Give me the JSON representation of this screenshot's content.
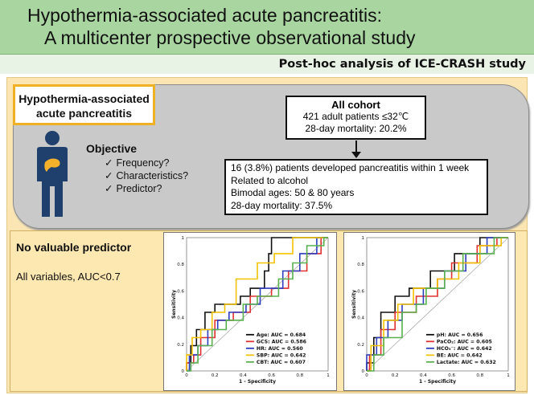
{
  "title": {
    "line1": "Hypothermia-associated acute pancreatitis:",
    "line2": "A multicenter prospective observational study"
  },
  "subtitle": "Post-hoc analysis of ICE-CRASH study",
  "topic": {
    "line1": "Hypothermia-associated",
    "line2": "acute pancreatitis"
  },
  "objective": {
    "heading": "Objective",
    "items": [
      "Frequency?",
      "Characteristics?",
      "Predictor?"
    ]
  },
  "all_cohort": {
    "title": "All cohort",
    "line1": "421 adult patients ≤32℃",
    "line2": "28-day mortality: 20.2%"
  },
  "findings": [
    "16 (3.8%) patients developed pancreatitis within 1 week",
    "Related to alcohol",
    "Bimodal ages: 50 & 80 years",
    "28-day mortality: 37.5%"
  ],
  "conclusion": {
    "heading": "No valuable predictor",
    "note": "All variables, AUC<0.7"
  },
  "chart_data": [
    {
      "type": "line",
      "xlabel": "1 - Specificity",
      "ylabel": "Sensitivity",
      "xlim": [
        0,
        1
      ],
      "ylim": [
        0,
        1
      ],
      "xticks": [
        "0",
        "0.2",
        "0.4",
        "0.6",
        "0.8",
        "1"
      ],
      "yticks": [
        "0",
        "0.2",
        "0.4",
        "0.6",
        "0.8",
        "1"
      ],
      "legend_position": "bottom-right",
      "series": [
        {
          "name": "Age: AUC = 0.684",
          "color": "#111111",
          "points": [
            [
              0,
              0
            ],
            [
              0,
              0.06
            ],
            [
              0.03,
              0.06
            ],
            [
              0.03,
              0.19
            ],
            [
              0.07,
              0.19
            ],
            [
              0.07,
              0.31
            ],
            [
              0.13,
              0.31
            ],
            [
              0.13,
              0.44
            ],
            [
              0.2,
              0.44
            ],
            [
              0.2,
              0.5
            ],
            [
              0.38,
              0.5
            ],
            [
              0.38,
              0.56
            ],
            [
              0.45,
              0.56
            ],
            [
              0.45,
              0.62
            ],
            [
              0.55,
              0.62
            ],
            [
              0.55,
              0.75
            ],
            [
              0.58,
              0.75
            ],
            [
              0.58,
              0.88
            ],
            [
              0.6,
              0.88
            ],
            [
              0.6,
              1
            ],
            [
              1,
              1
            ]
          ]
        },
        {
          "name": "GCS: AUC = 0.586",
          "color": "#e03030",
          "points": [
            [
              0,
              0
            ],
            [
              0,
              0.06
            ],
            [
              0.05,
              0.06
            ],
            [
              0.05,
              0.12
            ],
            [
              0.1,
              0.12
            ],
            [
              0.1,
              0.25
            ],
            [
              0.2,
              0.25
            ],
            [
              0.2,
              0.38
            ],
            [
              0.33,
              0.38
            ],
            [
              0.33,
              0.44
            ],
            [
              0.45,
              0.44
            ],
            [
              0.45,
              0.56
            ],
            [
              0.6,
              0.56
            ],
            [
              0.6,
              0.62
            ],
            [
              0.72,
              0.62
            ],
            [
              0.72,
              0.75
            ],
            [
              0.85,
              0.75
            ],
            [
              0.85,
              0.88
            ],
            [
              0.95,
              0.88
            ],
            [
              0.95,
              1
            ],
            [
              1,
              1
            ]
          ]
        },
        {
          "name": "HR: AUC = 0.560",
          "color": "#2d3dbf",
          "points": [
            [
              0,
              0
            ],
            [
              0.02,
              0
            ],
            [
              0.02,
              0.12
            ],
            [
              0.08,
              0.12
            ],
            [
              0.08,
              0.19
            ],
            [
              0.15,
              0.19
            ],
            [
              0.15,
              0.31
            ],
            [
              0.22,
              0.31
            ],
            [
              0.22,
              0.38
            ],
            [
              0.3,
              0.38
            ],
            [
              0.3,
              0.44
            ],
            [
              0.42,
              0.44
            ],
            [
              0.42,
              0.5
            ],
            [
              0.52,
              0.5
            ],
            [
              0.52,
              0.62
            ],
            [
              0.68,
              0.62
            ],
            [
              0.68,
              0.75
            ],
            [
              0.8,
              0.75
            ],
            [
              0.8,
              0.88
            ],
            [
              0.92,
              0.88
            ],
            [
              0.92,
              1
            ],
            [
              1,
              1
            ]
          ]
        },
        {
          "name": "SBP: AUC = 0.642",
          "color": "#f2c200",
          "points": [
            [
              0,
              0
            ],
            [
              0,
              0.12
            ],
            [
              0.04,
              0.12
            ],
            [
              0.04,
              0.25
            ],
            [
              0.1,
              0.25
            ],
            [
              0.1,
              0.31
            ],
            [
              0.18,
              0.31
            ],
            [
              0.18,
              0.44
            ],
            [
              0.27,
              0.44
            ],
            [
              0.27,
              0.5
            ],
            [
              0.35,
              0.5
            ],
            [
              0.35,
              0.69
            ],
            [
              0.5,
              0.69
            ],
            [
              0.5,
              0.81
            ],
            [
              0.62,
              0.81
            ],
            [
              0.62,
              0.88
            ],
            [
              0.75,
              0.88
            ],
            [
              0.75,
              1
            ],
            [
              1,
              1
            ]
          ]
        },
        {
          "name": "CBT: AUC = 0.607",
          "color": "#58b04f",
          "points": [
            [
              0,
              0
            ],
            [
              0.03,
              0
            ],
            [
              0.03,
              0.06
            ],
            [
              0.08,
              0.06
            ],
            [
              0.08,
              0.19
            ],
            [
              0.18,
              0.19
            ],
            [
              0.18,
              0.31
            ],
            [
              0.28,
              0.31
            ],
            [
              0.28,
              0.38
            ],
            [
              0.4,
              0.38
            ],
            [
              0.4,
              0.5
            ],
            [
              0.5,
              0.5
            ],
            [
              0.5,
              0.56
            ],
            [
              0.65,
              0.56
            ],
            [
              0.65,
              0.69
            ],
            [
              0.75,
              0.69
            ],
            [
              0.75,
              0.81
            ],
            [
              0.85,
              0.81
            ],
            [
              0.85,
              0.94
            ],
            [
              0.97,
              0.94
            ],
            [
              0.97,
              1
            ],
            [
              1,
              1
            ]
          ]
        }
      ]
    },
    {
      "type": "line",
      "xlabel": "1 - Specificity",
      "ylabel": "Sensitivity",
      "xlim": [
        0,
        1
      ],
      "ylim": [
        0,
        1
      ],
      "xticks": [
        "0",
        "0.2",
        "0.4",
        "0.6",
        "0.8",
        "1"
      ],
      "yticks": [
        "0",
        "0.2",
        "0.4",
        "0.6",
        "0.8",
        "1"
      ],
      "legend_position": "bottom-right",
      "series": [
        {
          "name": "pH: AUC = 0.656",
          "color": "#111111",
          "points": [
            [
              0,
              0
            ],
            [
              0,
              0.06
            ],
            [
              0.05,
              0.06
            ],
            [
              0.05,
              0.25
            ],
            [
              0.1,
              0.25
            ],
            [
              0.1,
              0.44
            ],
            [
              0.2,
              0.44
            ],
            [
              0.2,
              0.56
            ],
            [
              0.3,
              0.56
            ],
            [
              0.3,
              0.62
            ],
            [
              0.45,
              0.62
            ],
            [
              0.45,
              0.75
            ],
            [
              0.62,
              0.75
            ],
            [
              0.62,
              0.88
            ],
            [
              0.8,
              0.88
            ],
            [
              0.8,
              1
            ],
            [
              1,
              1
            ]
          ]
        },
        {
          "name": "PaCO₂: AUC = 0.605",
          "color": "#e03030",
          "points": [
            [
              0,
              0
            ],
            [
              0.02,
              0
            ],
            [
              0.02,
              0.12
            ],
            [
              0.1,
              0.12
            ],
            [
              0.1,
              0.31
            ],
            [
              0.2,
              0.31
            ],
            [
              0.2,
              0.44
            ],
            [
              0.35,
              0.44
            ],
            [
              0.35,
              0.56
            ],
            [
              0.5,
              0.56
            ],
            [
              0.5,
              0.69
            ],
            [
              0.6,
              0.69
            ],
            [
              0.6,
              0.81
            ],
            [
              0.78,
              0.81
            ],
            [
              0.78,
              0.94
            ],
            [
              0.92,
              0.94
            ],
            [
              0.92,
              1
            ],
            [
              1,
              1
            ]
          ]
        },
        {
          "name": "HCO₃⁻: AUC = 0.642",
          "color": "#2d3dbf",
          "points": [
            [
              0,
              0
            ],
            [
              0,
              0.12
            ],
            [
              0.07,
              0.12
            ],
            [
              0.07,
              0.25
            ],
            [
              0.15,
              0.25
            ],
            [
              0.15,
              0.38
            ],
            [
              0.25,
              0.38
            ],
            [
              0.25,
              0.5
            ],
            [
              0.4,
              0.5
            ],
            [
              0.4,
              0.62
            ],
            [
              0.55,
              0.62
            ],
            [
              0.55,
              0.75
            ],
            [
              0.7,
              0.75
            ],
            [
              0.7,
              0.88
            ],
            [
              0.85,
              0.88
            ],
            [
              0.85,
              1
            ],
            [
              1,
              1
            ]
          ]
        },
        {
          "name": "BE: AUC = 0.642",
          "color": "#f2c200",
          "points": [
            [
              0,
              0
            ],
            [
              0.03,
              0
            ],
            [
              0.03,
              0.19
            ],
            [
              0.12,
              0.19
            ],
            [
              0.12,
              0.38
            ],
            [
              0.22,
              0.38
            ],
            [
              0.22,
              0.5
            ],
            [
              0.33,
              0.5
            ],
            [
              0.33,
              0.62
            ],
            [
              0.5,
              0.62
            ],
            [
              0.5,
              0.69
            ],
            [
              0.65,
              0.69
            ],
            [
              0.65,
              0.81
            ],
            [
              0.8,
              0.81
            ],
            [
              0.8,
              0.94
            ],
            [
              0.95,
              0.94
            ],
            [
              0.95,
              1
            ],
            [
              1,
              1
            ]
          ]
        },
        {
          "name": "Lactate: AUC = 0.632",
          "color": "#58b04f",
          "points": [
            [
              0,
              0
            ],
            [
              0.05,
              0
            ],
            [
              0.05,
              0.12
            ],
            [
              0.12,
              0.12
            ],
            [
              0.12,
              0.25
            ],
            [
              0.25,
              0.25
            ],
            [
              0.25,
              0.44
            ],
            [
              0.35,
              0.44
            ],
            [
              0.35,
              0.5
            ],
            [
              0.42,
              0.5
            ],
            [
              0.42,
              0.62
            ],
            [
              0.55,
              0.62
            ],
            [
              0.55,
              0.75
            ],
            [
              0.68,
              0.75
            ],
            [
              0.68,
              0.88
            ],
            [
              0.9,
              0.88
            ],
            [
              0.9,
              1
            ],
            [
              1,
              1
            ]
          ]
        }
      ]
    }
  ]
}
